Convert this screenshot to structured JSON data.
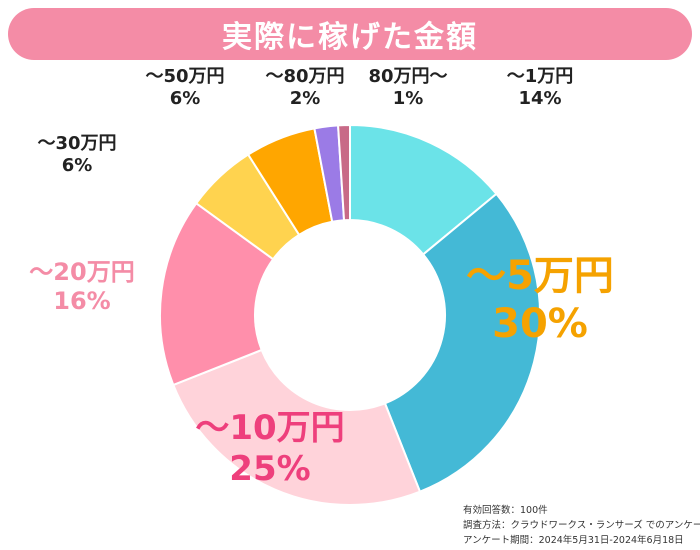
{
  "header": {
    "title": "実際に稼げた金額"
  },
  "chart_data": {
    "type": "pie",
    "variant": "donut",
    "start": "top, clockwise",
    "categories": [
      "～1万円",
      "～5万円",
      "～10万円",
      "～20万円",
      "～30万円",
      "～50万円",
      "～80万円",
      "80万円～"
    ],
    "values": [
      14,
      30,
      25,
      16,
      6,
      6,
      2,
      1
    ],
    "value_labels": [
      "14%",
      "30%",
      "25%",
      "16%",
      "6%",
      "6%",
      "2%",
      "1%"
    ],
    "colors": [
      "#6be3e8",
      "#44b9d6",
      "#ffd3da",
      "#ff8fab",
      "#ffd34f",
      "#ffa600",
      "#9b7be6",
      "#c86a87"
    ],
    "label_colors": [
      "#222222",
      "#f5a200",
      "#ee3f7c",
      "#f48ca6",
      "#222222",
      "#222222",
      "#222222",
      "#222222"
    ]
  },
  "footnote": {
    "line1": "有効回答数：100件",
    "line2": "調査方法：クラウドワークス・ランサーズ でのアンケート",
    "line3": "アンケート期間：2024年5月31日‐2024年6月18日"
  }
}
